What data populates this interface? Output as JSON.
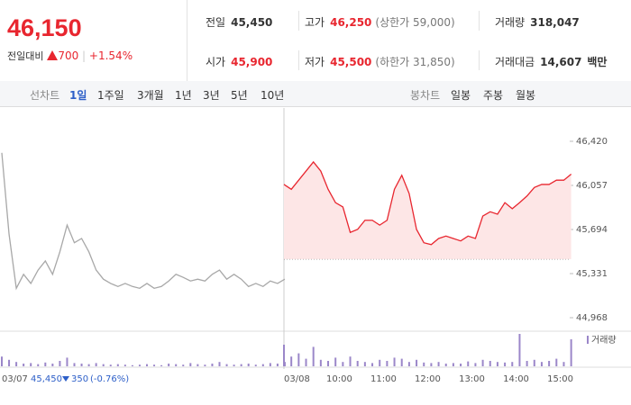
{
  "header": {
    "price": "46,150",
    "change_label": "전일대비",
    "change": "700",
    "change_pct": "+1.54%",
    "stats": [
      {
        "label": "전일",
        "value": "45,450"
      },
      {
        "label": "고가",
        "value": "46,250",
        "note": "(상한가 59,000)"
      },
      {
        "label": "거래량",
        "value": "318,047"
      },
      {
        "label": "시가",
        "value": "45,900"
      },
      {
        "label": "저가",
        "value": "45,500",
        "note": "(하한가 31,850)"
      },
      {
        "label": "거래대금",
        "value": "14,607",
        "unit": "백만"
      }
    ]
  },
  "tabs": {
    "line_label": "선차트",
    "line_periods": [
      "1일",
      "1주일",
      "3개월",
      "1년",
      "3년",
      "5년",
      "10년"
    ],
    "candle_label": "봉차트",
    "candle_periods": [
      "일봉",
      "주봉",
      "월봉"
    ]
  },
  "chart_data": {
    "type": "line",
    "ylim": [
      44968,
      46420
    ],
    "yticks": [
      {
        "value": 46420,
        "label": "46,420"
      },
      {
        "value": 46057,
        "label": "46,057"
      },
      {
        "value": 45694,
        "label": "45,694"
      },
      {
        "value": 45331,
        "label": "45,331"
      },
      {
        "value": 44968,
        "label": "44,968"
      }
    ],
    "grid": false,
    "baseline": 45450,
    "volume_name": "거래량",
    "volume_color": "#9b87c9",
    "prev_summary": {
      "close": "45,450",
      "change": "350",
      "pct": "(-0.76%)"
    },
    "series": [
      {
        "color": "#a8a8a8",
        "categories": [
          "03/07",
          null,
          null,
          null,
          null,
          null,
          null,
          null,
          null,
          null,
          null,
          null,
          null,
          null,
          null,
          null,
          null,
          null,
          null,
          null,
          null,
          null,
          null,
          null,
          null,
          null,
          null,
          null,
          null,
          null,
          null,
          null,
          null,
          null,
          null,
          null,
          null,
          null,
          null,
          null
        ],
        "values": [
          46325,
          45655,
          45210,
          45325,
          45250,
          45360,
          45435,
          45325,
          45510,
          45730,
          45585,
          45620,
          45510,
          45360,
          45285,
          45250,
          45225,
          45250,
          45225,
          45210,
          45250,
          45210,
          45225,
          45270,
          45325,
          45300,
          45270,
          45285,
          45270,
          45325,
          45360,
          45285,
          45325,
          45285,
          45225,
          45250,
          45225,
          45270,
          45250,
          45285
        ],
        "volume": [
          9000,
          6000,
          4000,
          2500,
          3000,
          2000,
          3500,
          2500,
          5000,
          8000,
          3000,
          2500,
          2000,
          3000,
          2000,
          1500,
          2000,
          1500,
          1000,
          1500,
          2000,
          1500,
          1000,
          2500,
          2000,
          1500,
          3000,
          2000,
          1500,
          2500,
          4000,
          2000,
          1500,
          2000,
          2500,
          1500,
          2000,
          3000,
          2500,
          4000
        ]
      },
      {
        "color": "#e8262f",
        "fill": "#fde6e6",
        "categories": [
          "03/08",
          null,
          null,
          null,
          null,
          null,
          "10:00",
          null,
          null,
          null,
          null,
          null,
          "11:00",
          null,
          null,
          null,
          null,
          null,
          "12:00",
          null,
          null,
          null,
          null,
          null,
          "13:00",
          null,
          null,
          null,
          null,
          null,
          "14:00",
          null,
          null,
          null,
          null,
          null,
          "15:00",
          null,
          null,
          null
        ],
        "values": [
          46065,
          46025,
          46100,
          46175,
          46250,
          46175,
          46025,
          45915,
          45880,
          45670,
          45695,
          45770,
          45770,
          45730,
          45770,
          46025,
          46140,
          45990,
          45695,
          45585,
          45570,
          45620,
          45640,
          45620,
          45600,
          45640,
          45620,
          45805,
          45840,
          45820,
          45915,
          45865,
          45915,
          45970,
          46040,
          46065,
          46065,
          46100,
          46100,
          46150
        ],
        "volume": [
          20000,
          9000,
          12000,
          7000,
          18000,
          6000,
          5000,
          8000,
          4000,
          9000,
          5000,
          4000,
          3000,
          6000,
          5000,
          8000,
          7000,
          4000,
          6000,
          3500,
          3000,
          4000,
          2500,
          3000,
          2500,
          4500,
          3000,
          6000,
          5000,
          4000,
          3500,
          4000,
          30000,
          5000,
          6000,
          4000,
          5000,
          7000,
          4000,
          25000
        ]
      }
    ]
  }
}
